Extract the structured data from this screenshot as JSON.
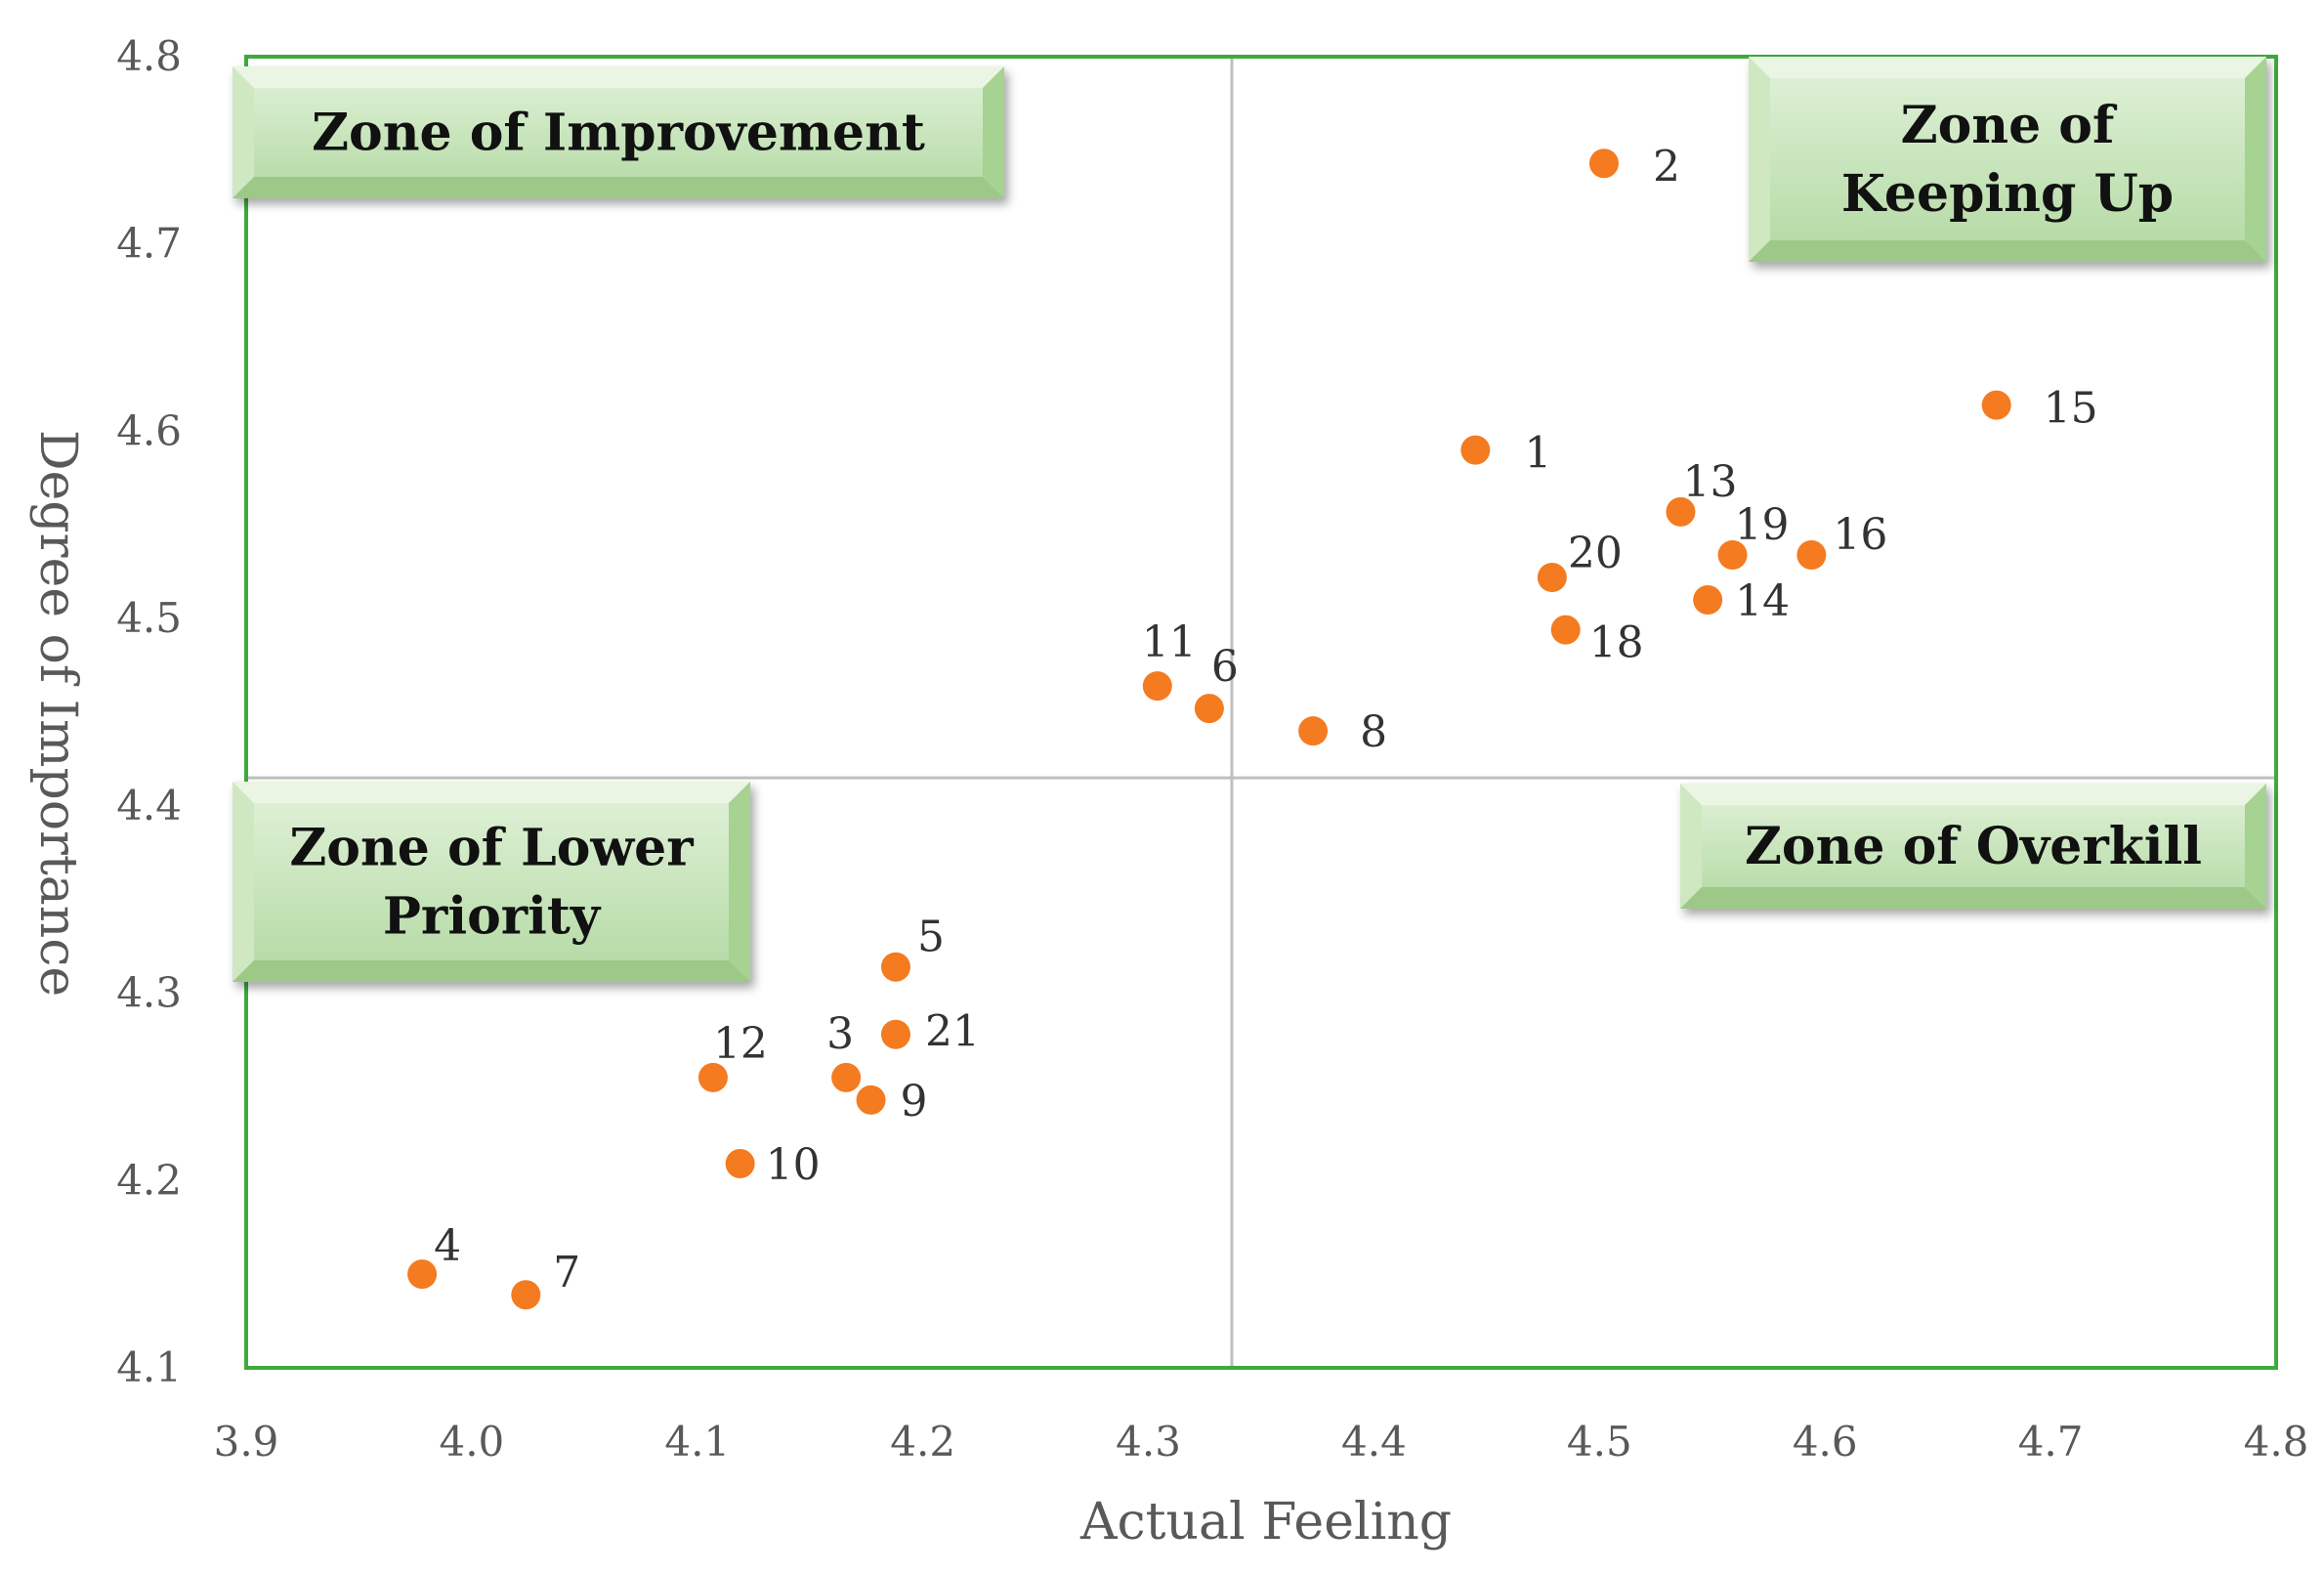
{
  "chart_data": {
    "type": "scatter",
    "title": "",
    "xlabel": "Actual Feeling",
    "ylabel": "Degree of Importance",
    "xlim": [
      3.9,
      4.8
    ],
    "ylim": [
      4.1,
      4.8
    ],
    "xticks": [
      "3.9",
      "4.0",
      "4.1",
      "4.2",
      "4.3",
      "4.4",
      "4.5",
      "4.6",
      "4.7",
      "4.8"
    ],
    "yticks": [
      "4.1",
      "4.2",
      "4.3",
      "4.4",
      "4.5",
      "4.6",
      "4.7",
      "4.8"
    ],
    "xdivider": 4.337,
    "ydivider": 4.415,
    "colors": {
      "point": "#F47B20",
      "frame": "#3DAA3D",
      "divider": "#BFBFBF",
      "zone_fill_light": "#E2F2DA",
      "zone_fill_dark": "#B2D9A2"
    },
    "points": [
      {
        "label": "1",
        "x": 4.445,
        "y": 4.59
      },
      {
        "label": "2",
        "x": 4.502,
        "y": 4.743
      },
      {
        "label": "3",
        "x": 4.166,
        "y": 4.255
      },
      {
        "label": "4",
        "x": 3.978,
        "y": 4.15
      },
      {
        "label": "5",
        "x": 4.188,
        "y": 4.314
      },
      {
        "label": "6",
        "x": 4.327,
        "y": 4.452
      },
      {
        "label": "7",
        "x": 4.024,
        "y": 4.139
      },
      {
        "label": "8",
        "x": 4.373,
        "y": 4.44
      },
      {
        "label": "9",
        "x": 4.177,
        "y": 4.243
      },
      {
        "label": "10",
        "x": 4.119,
        "y": 4.209
      },
      {
        "label": "11",
        "x": 4.304,
        "y": 4.464
      },
      {
        "label": "12",
        "x": 4.107,
        "y": 4.255
      },
      {
        "label": "13",
        "x": 4.536,
        "y": 4.557
      },
      {
        "label": "14",
        "x": 4.548,
        "y": 4.51
      },
      {
        "label": "15",
        "x": 4.676,
        "y": 4.614
      },
      {
        "label": "16",
        "x": 4.594,
        "y": 4.534
      },
      {
        "label": "18",
        "x": 4.485,
        "y": 4.494
      },
      {
        "label": "19",
        "x": 4.559,
        "y": 4.534
      },
      {
        "label": "20",
        "x": 4.479,
        "y": 4.522
      },
      {
        "label": "21",
        "x": 4.188,
        "y": 4.278
      }
    ],
    "zones": [
      {
        "name": "zone-improvement",
        "lines": [
          "Zone of Improvement"
        ],
        "position": "top-left"
      },
      {
        "name": "zone-keeping-up",
        "lines": [
          "Zone of",
          "Keeping Up"
        ],
        "position": "top-right"
      },
      {
        "name": "zone-lower-priority",
        "lines": [
          "Zone of Lower",
          "Priority"
        ],
        "position": "bottom-left"
      },
      {
        "name": "zone-overkill",
        "lines": [
          "Zone of Overkill"
        ],
        "position": "bottom-right"
      }
    ]
  }
}
